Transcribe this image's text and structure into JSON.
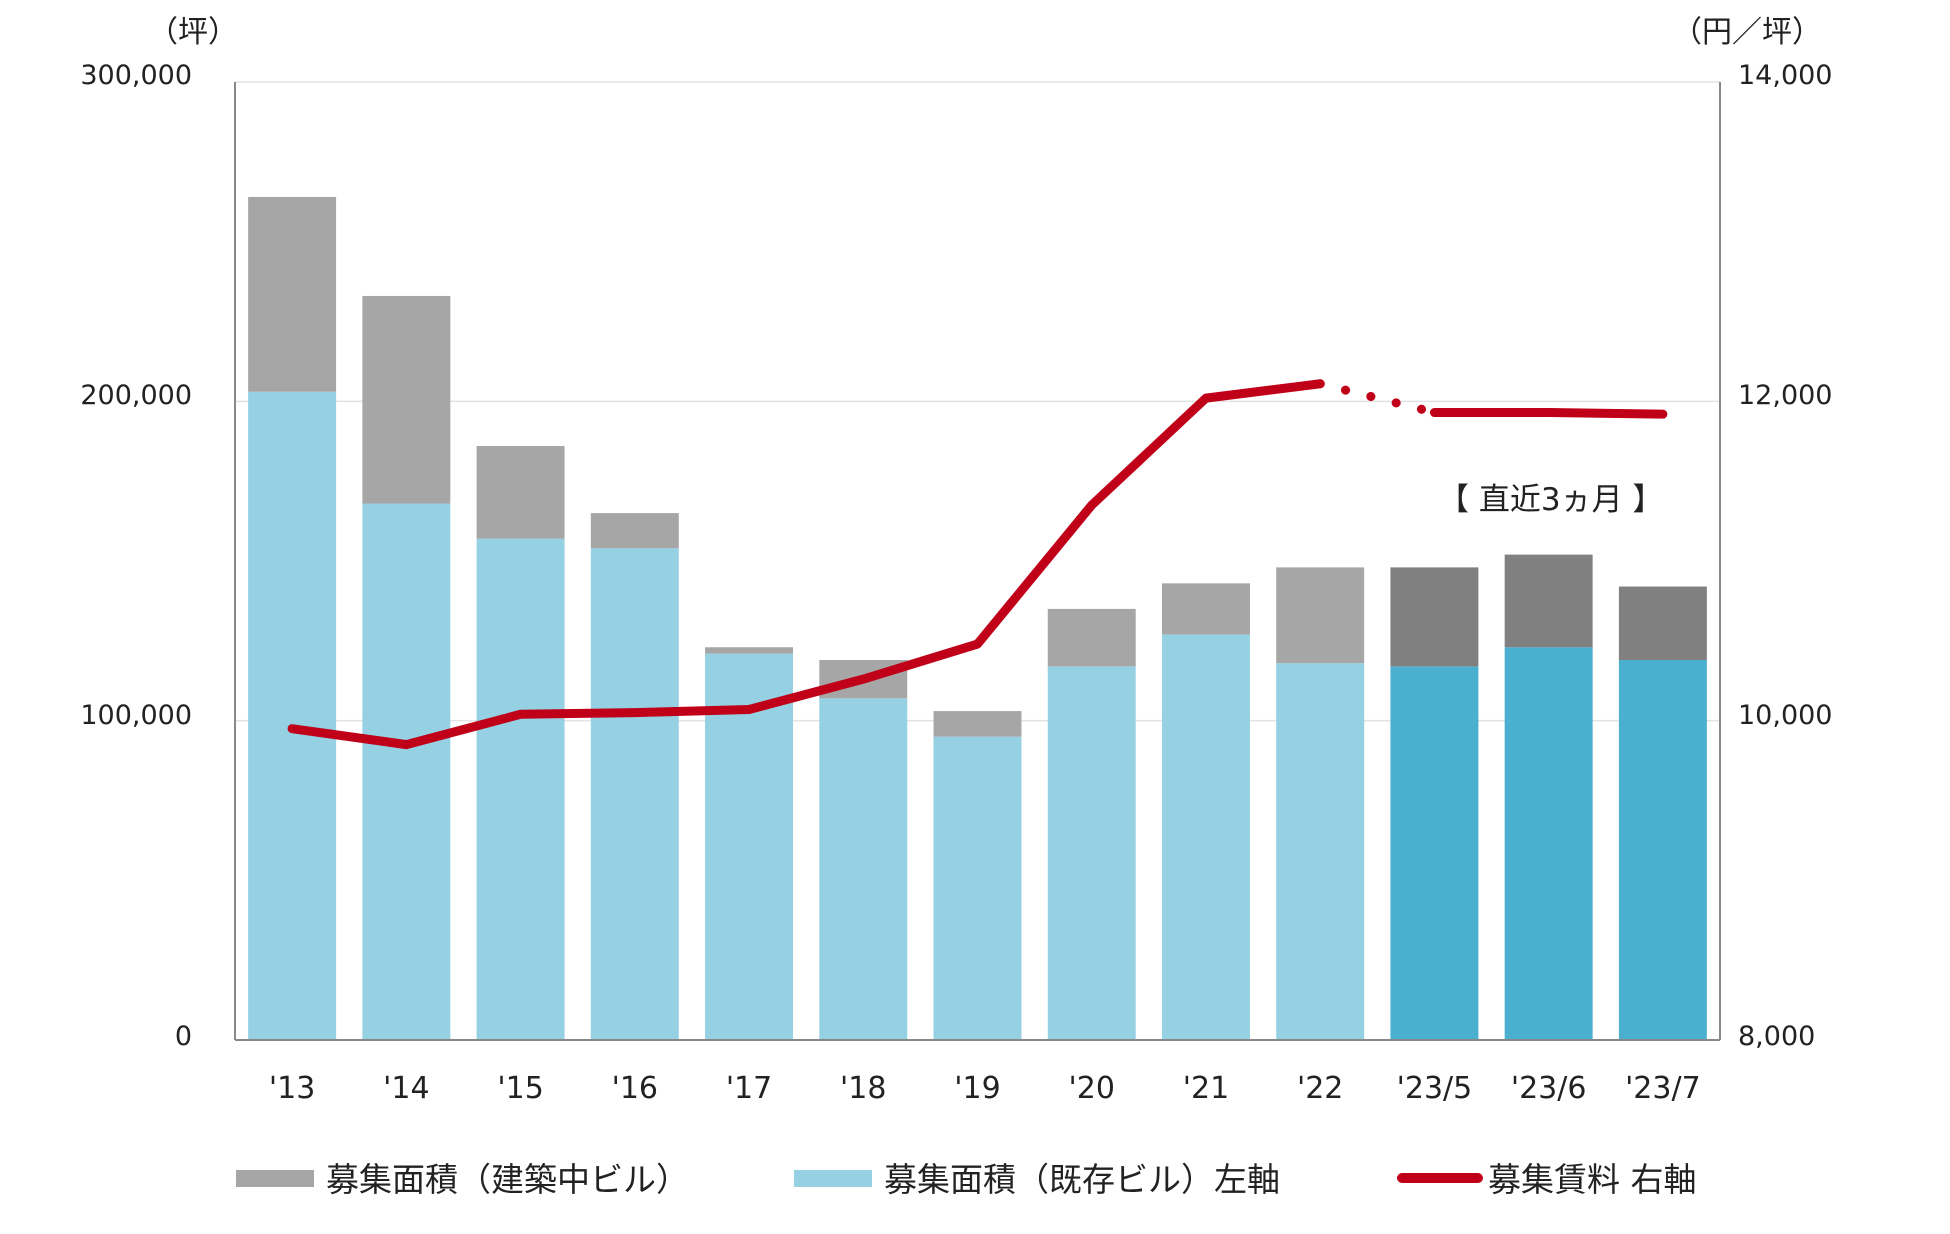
{
  "chart_data": {
    "type": "bar",
    "categories": [
      "'13",
      "'14",
      "'15",
      "'16",
      "'17",
      "'18",
      "'19",
      "'20",
      "'21",
      "'22",
      "'23/5",
      "'23/6",
      "'23/7"
    ],
    "series": [
      {
        "name": "募集面積（既存ビル）左軸",
        "type": "bar",
        "axis": "left",
        "stack": "area",
        "values": [
          203000,
          168000,
          157000,
          154000,
          121000,
          107000,
          95000,
          117000,
          127000,
          118000,
          117000,
          123000,
          119000
        ]
      },
      {
        "name": "募集面積（建築中ビル）",
        "type": "bar",
        "axis": "left",
        "stack": "area",
        "values": [
          61000,
          65000,
          29000,
          11000,
          2000,
          12000,
          8000,
          18000,
          16000,
          30000,
          31000,
          29000,
          23000
        ]
      },
      {
        "name": "募集賃料 右軸",
        "type": "line",
        "axis": "right",
        "values": [
          9950,
          9850,
          10040,
          10050,
          10070,
          10260,
          10480,
          11350,
          12020,
          12110,
          11930,
          11930,
          11920
        ]
      }
    ],
    "left_axis": {
      "unit": "（坪）",
      "ylim": [
        0,
        300000
      ],
      "ticks": [
        "0",
        "100,000",
        "200,000",
        "300,000"
      ]
    },
    "right_axis": {
      "unit": "（円／坪）",
      "ylim": [
        8000,
        14000
      ],
      "ticks": [
        "8,000",
        "10,000",
        "12,000",
        "14,000"
      ]
    },
    "annotation": "【 直近3ヵ月 】",
    "grid": true,
    "legend_position": "bottom",
    "colors": {
      "existing": "#95d0e3",
      "existing_recent": "#4bafd0",
      "construction": "#a6a6a6",
      "construction_recent": "#808080",
      "line": "#c00018"
    }
  }
}
